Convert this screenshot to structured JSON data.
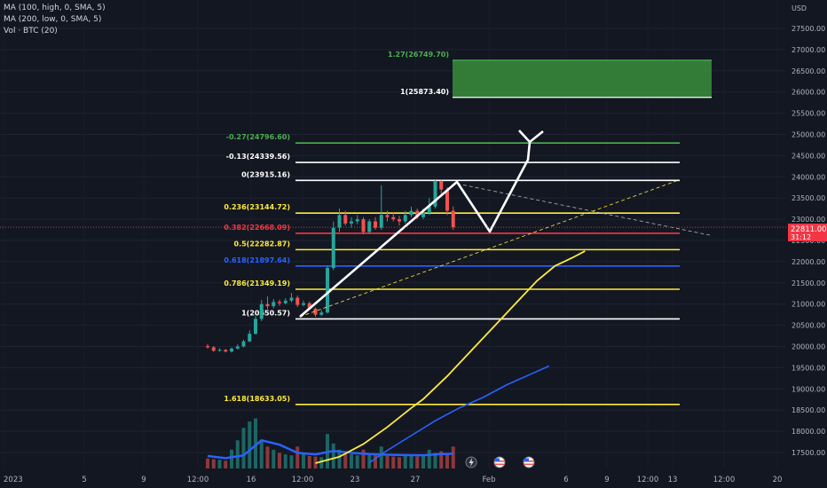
{
  "legend": {
    "line1": "MA (100, high, 0, SMA, 5)",
    "line2": "MA (200, low, 0, SMA, 5)",
    "line3": "Vol · BTC (20)"
  },
  "colors": {
    "background": "#131722",
    "axis_text": "#b2b5be",
    "up": "#26a69a",
    "down": "#ef5350",
    "ma100": "#ffeb3b",
    "ma200": "#2962ff",
    "volume_ma": "#2962ff",
    "fib_white": "#ffffff",
    "fib_yellow": "#ffeb3b",
    "fib_green": "#4caf50",
    "fib_red": "#f23645",
    "fib_blue": "#2962ff",
    "target_box": "#388e3c"
  },
  "chart_data": {
    "type": "candlestick",
    "symbol_currency": "USD",
    "ylim": [
      17250,
      28100
    ],
    "y_ticks": [
      "27500.00",
      "27000.00",
      "26500.00",
      "26000.00",
      "25500.00",
      "25000.00",
      "24500.00",
      "24000.00",
      "23500.00",
      "23000.00",
      "22500.00",
      "22000.00",
      "21500.00",
      "21000.00",
      "20500.00",
      "20000.00",
      "19500.00",
      "19000.00",
      "18500.00",
      "18000.00",
      "17500.00"
    ],
    "x_ticks": [
      "2023",
      "5",
      "9",
      "12:00",
      "16",
      "12:00",
      "23",
      "27",
      "Feb",
      "6",
      "9",
      "12:00",
      "13",
      "12:00",
      "20"
    ],
    "current_price": {
      "value": "22811.00",
      "countdown": "31:12"
    },
    "fib_levels": [
      {
        "label": "1.27(26749.70)",
        "price": 26749.7,
        "color": "#4caf50"
      },
      {
        "label": "1(25873.40)",
        "price": 25873.4,
        "color": "#ffffff"
      },
      {
        "label": "-0.27(24796.60)",
        "price": 24796.6,
        "color": "#4caf50"
      },
      {
        "label": "-0.13(24339.56)",
        "price": 24339.56,
        "color": "#ffffff"
      },
      {
        "label": "0(23915.16)",
        "price": 23915.16,
        "color": "#ffffff"
      },
      {
        "label": "0.236(23144.72)",
        "price": 23144.72,
        "color": "#ffeb3b"
      },
      {
        "label": "0.382(22668.09)",
        "price": 22668.09,
        "color": "#f23645"
      },
      {
        "label": "0.5(22282.87)",
        "price": 22282.87,
        "color": "#ffeb3b"
      },
      {
        "label": "0.618(21897.64)",
        "price": 21897.64,
        "color": "#2962ff"
      },
      {
        "label": "0.786(21349.19)",
        "price": 21349.19,
        "color": "#ffeb3b"
      },
      {
        "label": "1(20650.57)",
        "price": 20650.57,
        "color": "#ffffff"
      },
      {
        "label": "1.618(18633.05)",
        "price": 18633.05,
        "color": "#ffeb3b"
      }
    ],
    "ma100": [
      [
        18,
        17250
      ],
      [
        22,
        17400
      ],
      [
        26,
        17700
      ],
      [
        30,
        18100
      ],
      [
        34,
        18550
      ],
      [
        36,
        18760
      ],
      [
        40,
        19300
      ],
      [
        44,
        19900
      ],
      [
        48,
        20500
      ],
      [
        52,
        21100
      ],
      [
        55,
        21550
      ],
      [
        58,
        21900
      ],
      [
        61,
        22100
      ],
      [
        63,
        22250
      ]
    ],
    "ma200": [
      [
        27,
        17260
      ],
      [
        30,
        17550
      ],
      [
        34,
        17900
      ],
      [
        38,
        18250
      ],
      [
        42,
        18550
      ],
      [
        46,
        18800
      ],
      [
        50,
        19100
      ],
      [
        54,
        19350
      ],
      [
        57,
        19540
      ]
    ],
    "candles": [
      [
        20010,
        19980,
        20060,
        19950
      ],
      [
        19980,
        19900,
        20010,
        19870
      ],
      [
        19900,
        19920,
        19960,
        19880
      ],
      [
        19920,
        19880,
        19940,
        19860
      ],
      [
        19880,
        19950,
        19980,
        19860
      ],
      [
        19950,
        20000,
        20050,
        19930
      ],
      [
        20000,
        20120,
        20160,
        19980
      ],
      [
        20120,
        20300,
        20380,
        20100
      ],
      [
        20300,
        20650,
        20720,
        20280
      ],
      [
        20650,
        21000,
        21100,
        20600
      ],
      [
        21000,
        20950,
        21180,
        20880
      ],
      [
        20950,
        21050,
        21120,
        20900
      ],
      [
        21050,
        21020,
        21100,
        20960
      ],
      [
        21020,
        21080,
        21140,
        20990
      ],
      [
        21080,
        21150,
        21260,
        21040
      ],
      [
        21150,
        20980,
        21200,
        20930
      ],
      [
        20980,
        21020,
        21080,
        20950
      ],
      [
        21020,
        20890,
        21060,
        20860
      ],
      [
        20890,
        20750,
        20920,
        20700
      ],
      [
        20750,
        20800,
        20860,
        20720
      ],
      [
        20800,
        21850,
        21900,
        20780
      ],
      [
        21850,
        22800,
        22950,
        21800
      ],
      [
        22800,
        23100,
        23250,
        22700
      ],
      [
        23100,
        22900,
        23200,
        22850
      ],
      [
        22900,
        22950,
        23050,
        22800
      ],
      [
        22950,
        23000,
        23100,
        22880
      ],
      [
        23000,
        22700,
        23050,
        22650
      ],
      [
        22700,
        22950,
        23000,
        22650
      ],
      [
        22950,
        22800,
        23050,
        22750
      ],
      [
        22800,
        23100,
        23800,
        22750
      ],
      [
        23100,
        23050,
        23200,
        22950
      ],
      [
        23050,
        23000,
        23150,
        22950
      ],
      [
        23000,
        22950,
        23080,
        22850
      ],
      [
        22950,
        23100,
        23200,
        22900
      ],
      [
        23100,
        23200,
        23300,
        23050
      ],
      [
        23200,
        23050,
        23250,
        23000
      ],
      [
        23050,
        23150,
        23250,
        23000
      ],
      [
        23150,
        23300,
        23500,
        23100
      ],
      [
        23300,
        23900,
        23950,
        23250
      ],
      [
        23900,
        23700,
        23920,
        23600
      ],
      [
        23700,
        23200,
        23750,
        23100
      ],
      [
        23200,
        22811,
        23300,
        22750
      ]
    ],
    "volumes": [
      320,
      300,
      280,
      250,
      600,
      900,
      1300,
      1500,
      1600,
      900,
      700,
      600,
      500,
      450,
      420,
      700,
      500,
      400,
      380,
      360,
      1100,
      800,
      600,
      500,
      450,
      420,
      600,
      480,
      420,
      700,
      400,
      380,
      360,
      400,
      420,
      380,
      420,
      600,
      500,
      550,
      480,
      700
    ],
    "volume_ma": [
      [
        0,
        400
      ],
      [
        3,
        330
      ],
      [
        6,
        420
      ],
      [
        9,
        900
      ],
      [
        12,
        760
      ],
      [
        15,
        500
      ],
      [
        18,
        450
      ],
      [
        21,
        560
      ],
      [
        24,
        500
      ],
      [
        27,
        460
      ],
      [
        30,
        440
      ],
      [
        33,
        430
      ],
      [
        36,
        420
      ],
      [
        39,
        460
      ],
      [
        41,
        470
      ]
    ]
  }
}
